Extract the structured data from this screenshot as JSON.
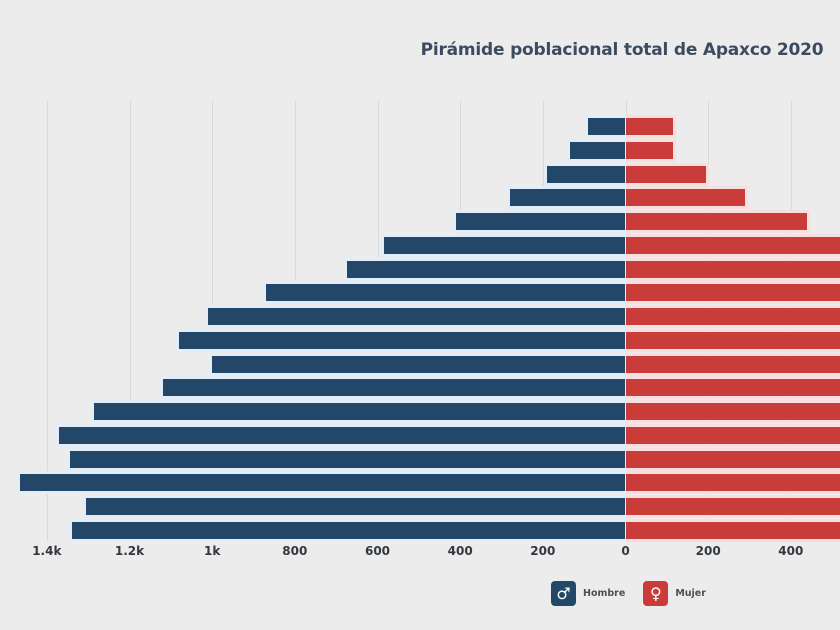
{
  "chart_data": {
    "type": "bar",
    "subtype": "population-pyramid",
    "title": "Pirámide poblacional total de Apaxco 2020",
    "orientation": "horizontal",
    "x_axis": {
      "ticks": [
        {
          "label": "1.4k",
          "value": -1400
        },
        {
          "label": "1.2k",
          "value": -1200
        },
        {
          "label": "1k",
          "value": -1000
        },
        {
          "label": "800",
          "value": -800
        },
        {
          "label": "600",
          "value": -600
        },
        {
          "label": "400",
          "value": -400
        },
        {
          "label": "200",
          "value": -200
        },
        {
          "label": "0",
          "value": 0
        },
        {
          "label": "200",
          "value": 200
        },
        {
          "label": "400",
          "value": 400
        }
      ],
      "visible_range": [
        -1510,
        520
      ],
      "grid": true
    },
    "series": [
      {
        "name": "Hombre",
        "side": "left"
      },
      {
        "name": "Mujer",
        "side": "right"
      }
    ],
    "rows": [
      {
        "male": 90,
        "female": 115,
        "female_clipped": false
      },
      {
        "male": 135,
        "female": 115,
        "female_clipped": false
      },
      {
        "male": 190,
        "female": 195,
        "female_clipped": false
      },
      {
        "male": 280,
        "female": 290,
        "female_clipped": false
      },
      {
        "male": 410,
        "female": 440,
        "female_clipped": false
      },
      {
        "male": 585,
        "female": null,
        "female_clipped": true
      },
      {
        "male": 675,
        "female": null,
        "female_clipped": true
      },
      {
        "male": 870,
        "female": null,
        "female_clipped": true
      },
      {
        "male": 1010,
        "female": null,
        "female_clipped": true
      },
      {
        "male": 1080,
        "female": null,
        "female_clipped": true
      },
      {
        "male": 1000,
        "female": null,
        "female_clipped": true
      },
      {
        "male": 1120,
        "female": null,
        "female_clipped": true
      },
      {
        "male": 1285,
        "female": null,
        "female_clipped": true
      },
      {
        "male": 1370,
        "female": null,
        "female_clipped": true
      },
      {
        "male": 1345,
        "female": null,
        "female_clipped": true
      },
      {
        "male": 1465,
        "female": null,
        "female_clipped": true
      },
      {
        "male": 1305,
        "female": null,
        "female_clipped": true
      },
      {
        "male": 1340,
        "female": null,
        "female_clipped": true
      }
    ]
  },
  "legend": {
    "items": [
      {
        "label": "Hombre",
        "glyph": "♂"
      },
      {
        "label": "Mujer",
        "glyph": "♀"
      }
    ]
  },
  "colors": {
    "background": "#ececec",
    "gridline": "#d9dadb",
    "male": "#234768",
    "male_outline": "#e3edf8",
    "female": "#ca3c39",
    "female_outline": "#f7dfe0",
    "title": "#3c4b5f",
    "tick_label": "#33383e",
    "legend_label": "#4b5057"
  }
}
